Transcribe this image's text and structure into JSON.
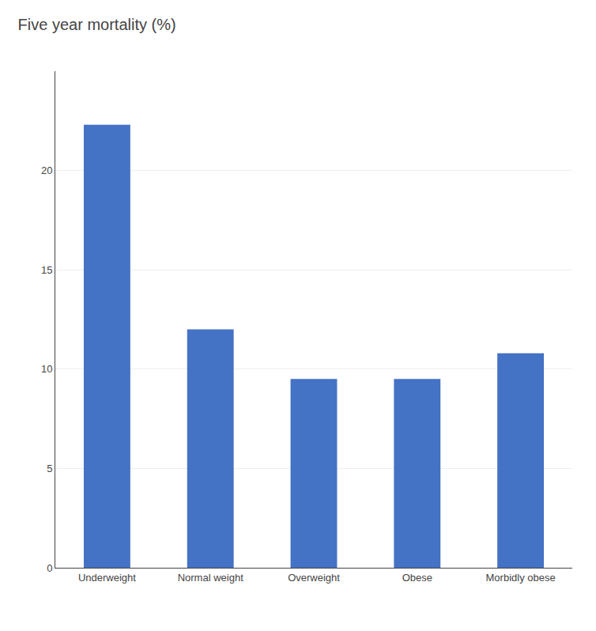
{
  "chart_data": {
    "type": "bar",
    "title": "Five year mortality (%)",
    "categories": [
      "Underweight",
      "Normal weight",
      "Overweight",
      "Obese",
      "Morbidly obese"
    ],
    "values": [
      22.3,
      12.0,
      9.5,
      9.5,
      10.8
    ],
    "color": "#4472C4",
    "ylim": [
      0,
      25
    ],
    "yticks": [
      0,
      5,
      10,
      15,
      20
    ],
    "grid": true
  }
}
